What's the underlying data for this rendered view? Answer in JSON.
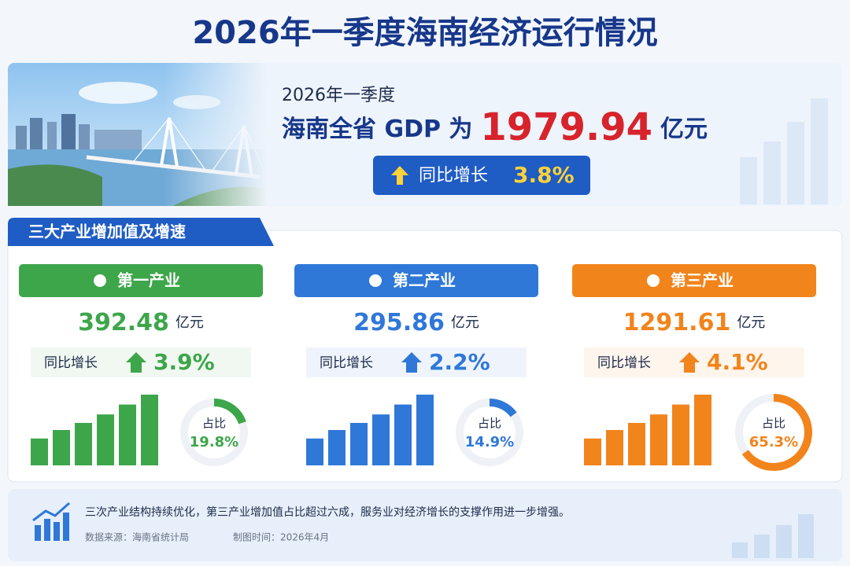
{
  "header": {
    "title": "2026年一季度海南经济运行情况"
  },
  "hero": {
    "period": "2026年一季度",
    "headline_prefix": "海南全省 GDP 为",
    "gdp": "1979.94",
    "unit": "亿元",
    "growth_label": "同比增长",
    "growth": "3.8%"
  },
  "section": {
    "title": "三大产业增加值及增速"
  },
  "industries": [
    {
      "name": "第一产业",
      "value": "392.48",
      "unit": "亿元",
      "growth_label": "同比增长",
      "growth": "3.9%",
      "share_label": "占比",
      "share": {
        "value": 19.8,
        "label": "19.8%"
      },
      "color": "#3da64a"
    },
    {
      "name": "第二产业",
      "value": "295.86",
      "unit": "亿元",
      "growth_label": "同比增长",
      "growth": "2.2%",
      "share_label": "占比",
      "share": {
        "value": 14.9,
        "label": "14.9%"
      },
      "color": "#2f78d8"
    },
    {
      "name": "第三产业",
      "value": "1291.61",
      "unit": "亿元",
      "growth_label": "同比增长",
      "growth": "4.1%",
      "share_label": "占比",
      "share": {
        "value": 65.3,
        "label": "65.3%"
      },
      "color": "#f2841c"
    }
  ],
  "footer": {
    "note": "三次产业结构持续优化，第三产业增加值占比超过六成，服务业对经济增长的支撑作用进一步增强。",
    "source": "数据来源：海南省统计局",
    "date": "制图时间：2026年4月"
  }
}
